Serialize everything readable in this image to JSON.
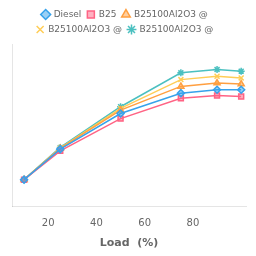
{
  "chart_data": {
    "type": "line",
    "x": [
      10,
      25,
      50,
      75,
      90,
      100
    ],
    "series": [
      {
        "name": "Diesel",
        "values": [
          8.0,
          17.0,
          27.5,
          33.5,
          34.5,
          34.5
        ],
        "marker": "diamond"
      },
      {
        "name": "B25",
        "values": [
          8.0,
          16.5,
          26.0,
          32.0,
          32.8,
          32.5
        ],
        "marker": "square"
      },
      {
        "name": "B25100Al2O3 @",
        "values": [
          8.0,
          17.2,
          28.5,
          35.5,
          36.5,
          36.2
        ],
        "marker": "triangle"
      },
      {
        "name": "B25100Al2O3 @",
        "values": [
          8.0,
          17.3,
          29.0,
          37.5,
          38.5,
          38.0
        ],
        "marker": "x"
      },
      {
        "name": "B25100Al2O3 @",
        "values": [
          8.0,
          17.5,
          29.5,
          39.5,
          40.5,
          40.0
        ],
        "marker": "star"
      }
    ],
    "xlabel": "Load  (%)",
    "xlim": [
      5,
      102
    ],
    "xticks": [
      20,
      40,
      60,
      80
    ],
    "ylim": [
      0,
      48
    ],
    "tick_labels": "x",
    "grid": false,
    "legend": "top"
  }
}
